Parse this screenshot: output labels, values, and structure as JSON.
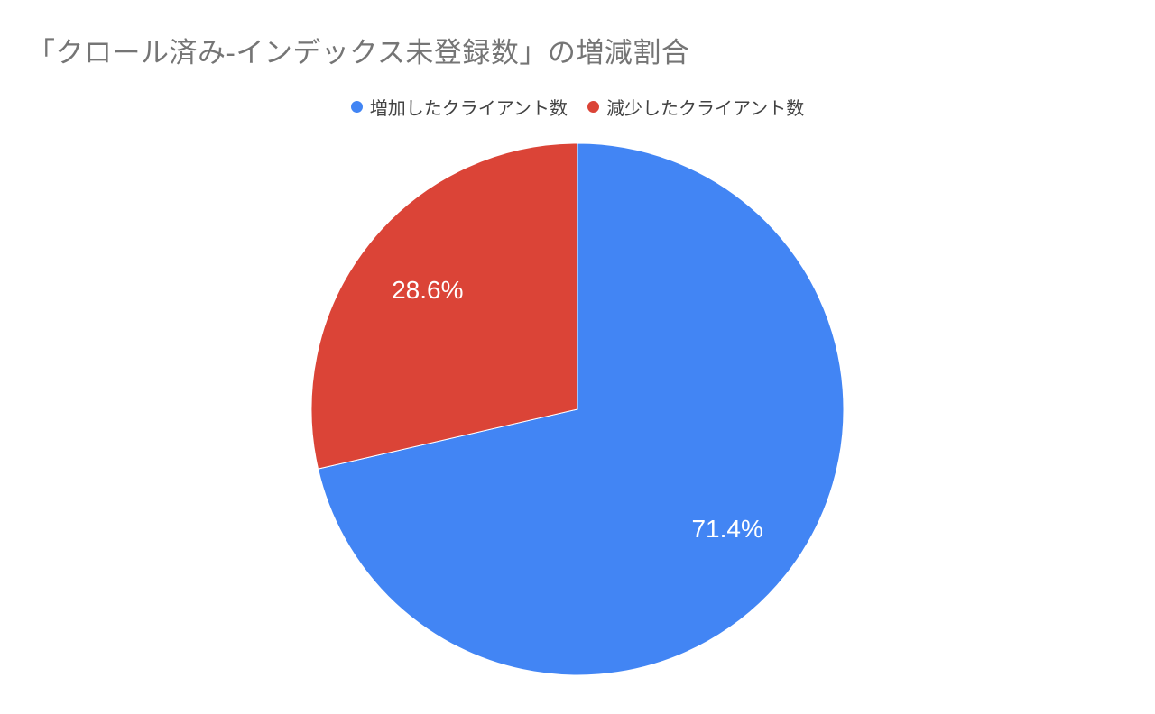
{
  "title": "「クロール済み-インデックス未登録数」の増減割合",
  "styles": {
    "background": "#ffffff",
    "title_color": "#757575",
    "legend_text_color": "#424242",
    "slice_label_color": "#ffffff",
    "increase_color": "#4285F4",
    "decrease_color": "#DB4437"
  },
  "chart_data": {
    "type": "pie",
    "title": "「クロール済み-インデックス未登録数」の増減割合",
    "legend_position": "top",
    "start_angle_deg": 0,
    "direction": "clockwise",
    "label_color": "#ffffff",
    "slices": [
      {
        "label": "増加したクライアント数",
        "value": 71.4,
        "display": "71.4%",
        "color": "#4285F4"
      },
      {
        "label": "減少したクライアント数",
        "value": 28.6,
        "display": "28.6%",
        "color": "#DB4437"
      }
    ]
  }
}
